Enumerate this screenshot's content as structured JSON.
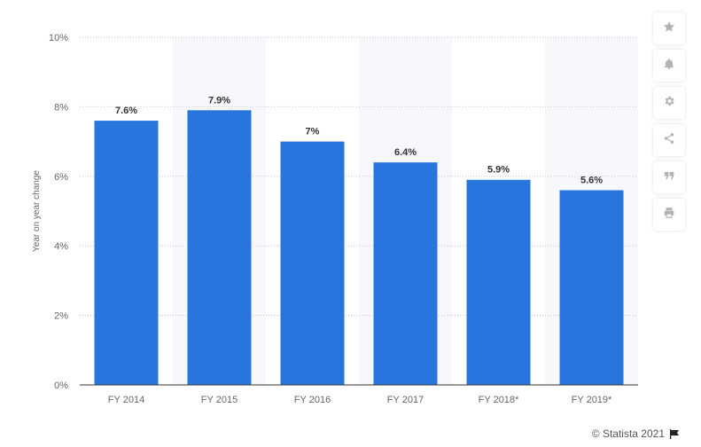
{
  "chart_data": {
    "type": "bar",
    "categories": [
      "FY 2014",
      "FY 2015",
      "FY 2016",
      "FY 2017",
      "FY 2018*",
      "FY 2019*"
    ],
    "values": [
      7.6,
      7.9,
      7.0,
      6.4,
      5.9,
      5.6
    ],
    "value_labels": [
      "7.6%",
      "7.9%",
      "7%",
      "6.4%",
      "5.9%",
      "5.6%"
    ],
    "ylabel": "Year on year change",
    "xlabel": "",
    "ylim": [
      0,
      10
    ],
    "yticks": [
      0,
      2,
      4,
      6,
      8,
      10
    ],
    "ytick_labels": [
      "0%",
      "2%",
      "4%",
      "6%",
      "8%",
      "10%"
    ],
    "grid": true,
    "bar_color": "#2876dd",
    "alt_band_color": "#f7f8fb"
  },
  "toolbar": {
    "items": [
      {
        "icon": "star-icon"
      },
      {
        "icon": "bell-icon"
      },
      {
        "icon": "gear-icon"
      },
      {
        "icon": "share-icon"
      },
      {
        "icon": "quote-icon"
      },
      {
        "icon": "print-icon"
      }
    ]
  },
  "footer": {
    "copyright": "© Statista 2021"
  }
}
